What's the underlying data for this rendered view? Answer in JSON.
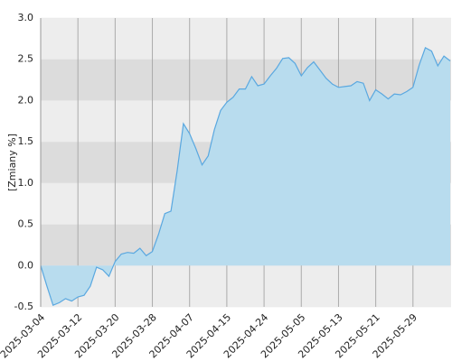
{
  "chart_data": {
    "type": "area",
    "y_label": "[Zmiany %]",
    "categories": [
      "2025-03-04",
      null,
      null,
      null,
      null,
      null,
      "2025-03-12",
      null,
      null,
      null,
      null,
      null,
      "2025-03-20",
      null,
      null,
      null,
      null,
      null,
      "2025-03-28",
      null,
      null,
      null,
      null,
      null,
      "2025-04-07",
      null,
      null,
      null,
      null,
      null,
      "2025-04-15",
      null,
      null,
      null,
      null,
      null,
      "2025-04-24",
      null,
      null,
      null,
      null,
      null,
      "2025-05-05",
      null,
      null,
      null,
      null,
      null,
      "2025-05-13",
      null,
      null,
      null,
      null,
      null,
      "2025-05-21",
      null,
      null,
      null,
      null,
      null,
      "2025-05-29",
      null,
      null,
      null,
      null,
      null,
      null
    ],
    "values": [
      0.0,
      -0.25,
      -0.48,
      -0.45,
      -0.4,
      -0.43,
      -0.38,
      -0.36,
      -0.25,
      -0.02,
      -0.05,
      -0.13,
      0.05,
      0.14,
      0.16,
      0.15,
      0.21,
      0.12,
      0.17,
      0.38,
      0.63,
      0.66,
      1.15,
      1.72,
      1.6,
      1.42,
      1.22,
      1.33,
      1.65,
      1.88,
      1.98,
      2.04,
      2.14,
      2.14,
      2.29,
      2.18,
      2.2,
      2.3,
      2.39,
      2.51,
      2.52,
      2.45,
      2.3,
      2.4,
      2.47,
      2.37,
      2.27,
      2.2,
      2.16,
      2.17,
      2.18,
      2.23,
      2.21,
      2.0,
      2.13,
      2.08,
      2.02,
      2.08,
      2.07,
      2.11,
      2.16,
      2.43,
      2.64,
      2.6,
      2.42,
      2.54,
      2.48
    ],
    "color": "#5aa8e0",
    "fill": "#b8dcee",
    "ylim": [
      -0.5,
      3.0
    ],
    "yticks": [
      -0.5,
      {
        "value": 0,
        "label": "0.0"
      },
      0.5,
      {
        "value": 1,
        "label": "1.0"
      },
      1.5,
      {
        "value": 2,
        "label": "2.0"
      },
      2.5,
      {
        "value": 3,
        "label": "3.0"
      }
    ],
    "grid": true
  }
}
